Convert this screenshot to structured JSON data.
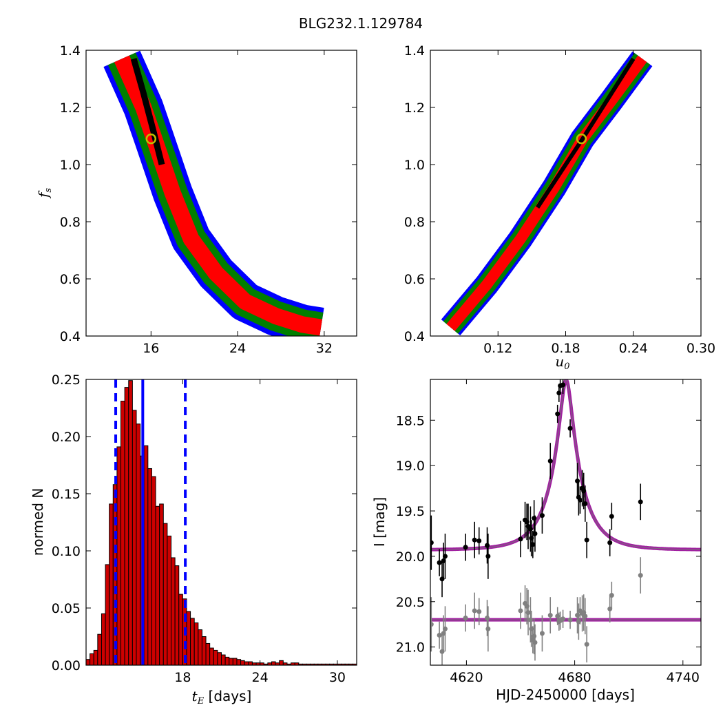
{
  "figure": {
    "title": "BLG232.1.129784"
  },
  "colors": {
    "sigma1": "#000000",
    "sigma2": "#ff0000",
    "sigma3": "#007f00",
    "sigma4": "#0000ff",
    "best_marker": "#bfbf00",
    "hist_fill": "#cc0000",
    "vline": "#0000ff",
    "model": "#a020a0",
    "model_core": "#777777",
    "data_main": "#000000",
    "data_resid": "#808080"
  },
  "chart_data": [
    {
      "id": "fs_vs_tE",
      "type": "heatmap",
      "title": "",
      "xlabel": "",
      "ylabel": "f_s",
      "xlim": [
        10,
        35
      ],
      "ylim": [
        0.4,
        1.4
      ],
      "xticks": [
        16,
        24,
        32
      ],
      "xtick_labels": [
        "16",
        "24",
        "32"
      ],
      "yticks": [
        0.4,
        0.6,
        0.8,
        1.0,
        1.2,
        1.4
      ],
      "ytick_labels": [
        "0.4",
        "0.6",
        "0.8",
        "1.0",
        "1.2",
        "1.4"
      ],
      "levels": [
        "1 sigma (black)",
        "2 sigma (red)",
        "3 sigma (green)",
        "4 sigma (blue)"
      ],
      "ridge": [
        [
          13.3,
          1.37
        ],
        [
          15.3,
          1.2
        ],
        [
          16.3,
          1.09
        ],
        [
          18.0,
          0.9
        ],
        [
          19.7,
          0.74
        ],
        [
          22.0,
          0.62
        ],
        [
          24.7,
          0.52
        ],
        [
          27.5,
          0.47
        ],
        [
          30.0,
          0.44
        ],
        [
          31.7,
          0.43
        ]
      ],
      "core_ridge": [
        [
          14.4,
          1.37
        ],
        [
          15.3,
          1.25
        ],
        [
          16.2,
          1.12
        ],
        [
          17.0,
          1.0
        ]
      ],
      "best_fit": {
        "x": 16.0,
        "y": 1.09
      }
    },
    {
      "id": "fs_vs_u0",
      "type": "heatmap",
      "title": "",
      "xlabel": "u_0",
      "ylabel": "",
      "xlim": [
        0.06,
        0.3
      ],
      "ylim": [
        0.4,
        1.4
      ],
      "xticks": [
        0.12,
        0.18,
        0.24,
        0.3
      ],
      "xtick_labels": [
        "0.12",
        "0.18",
        "0.24",
        "0.30"
      ],
      "yticks": [
        0.4,
        0.6,
        0.8,
        1.0,
        1.2,
        1.4
      ],
      "ytick_labels": [
        "0.4",
        "0.6",
        "0.8",
        "1.0",
        "1.2",
        "1.4"
      ],
      "ridge": [
        [
          0.078,
          0.43
        ],
        [
          0.11,
          0.58
        ],
        [
          0.14,
          0.74
        ],
        [
          0.17,
          0.92
        ],
        [
          0.195,
          1.09
        ],
        [
          0.22,
          1.22
        ],
        [
          0.248,
          1.37
        ]
      ],
      "core_ridge": [
        [
          0.155,
          0.85
        ],
        [
          0.195,
          1.09
        ],
        [
          0.24,
          1.37
        ]
      ],
      "best_fit": {
        "x": 0.194,
        "y": 1.09
      }
    },
    {
      "id": "tE_histogram",
      "type": "bar",
      "title": "",
      "xlabel": "t_E  [days]",
      "ylabel": "normed N",
      "xlim": [
        10.5,
        31.5
      ],
      "ylim": [
        0,
        0.25
      ],
      "xticks": [
        18,
        24,
        30
      ],
      "xtick_labels": [
        "18",
        "24",
        "30"
      ],
      "yticks": [
        0,
        0.05,
        0.1,
        0.15,
        0.2,
        0.25
      ],
      "ytick_labels": [
        "0.00",
        "0.05",
        "0.10",
        "0.15",
        "0.20",
        "0.25"
      ],
      "bin_start": 10.5,
      "bin_width": 0.3,
      "values": [
        0.005,
        0.01,
        0.013,
        0.027,
        0.045,
        0.088,
        0.141,
        0.158,
        0.191,
        0.231,
        0.243,
        0.249,
        0.223,
        0.211,
        0.183,
        0.192,
        0.172,
        0.165,
        0.139,
        0.141,
        0.124,
        0.113,
        0.094,
        0.087,
        0.062,
        0.058,
        0.047,
        0.041,
        0.037,
        0.031,
        0.025,
        0.019,
        0.015,
        0.013,
        0.011,
        0.009,
        0.007,
        0.006,
        0.006,
        0.005,
        0.004,
        0.003,
        0.003,
        0.002,
        0.002,
        0.002,
        0.001,
        0.002,
        0.003,
        0.002,
        0.004,
        0.002,
        0.001,
        0.002,
        0.002,
        0.001,
        0.001,
        0.001,
        0.001,
        0.001,
        0.001,
        0.001,
        0.001,
        0.001,
        0.001,
        0.001,
        0.001,
        0.001,
        0.001,
        0.001
      ],
      "median": 14.9,
      "bounds": [
        12.8,
        18.2
      ]
    },
    {
      "id": "light_curve",
      "type": "scatter",
      "title": "",
      "xlabel": "HJD-2450000 [days]",
      "ylabel": "I [mag]",
      "xlim": [
        4600,
        4750
      ],
      "ylim": [
        21.2,
        18.05
      ],
      "y_inverted": true,
      "xticks": [
        4620,
        4680,
        4740
      ],
      "xtick_labels": [
        "4620",
        "4680",
        "4740"
      ],
      "yticks": [
        18.5,
        19.0,
        19.5,
        20.0,
        20.5,
        21.0
      ],
      "ytick_labels": [
        "18.5",
        "19.0",
        "19.5",
        "20.0",
        "20.5",
        "21.0"
      ],
      "model": {
        "t0": 4675.3,
        "u0": 0.194,
        "tE": 16.0,
        "fs": 1.09,
        "baseline": 19.93
      },
      "residual_offset": 20.7,
      "series": [
        {
          "color": "#000000",
          "points": [
            [
              4600.5,
              19.85,
              0.3
            ],
            [
              4605.0,
              20.07,
              0.15
            ],
            [
              4606.5,
              20.25,
              0.2
            ],
            [
              4607.3,
              20.05,
              0.2
            ],
            [
              4608.2,
              20.0,
              0.25
            ],
            [
              4619.5,
              19.9,
              0.15
            ],
            [
              4624.5,
              19.82,
              0.2
            ],
            [
              4627.0,
              19.83,
              0.15
            ],
            [
              4631.5,
              19.88,
              0.2
            ],
            [
              4632.0,
              20.0,
              0.25
            ],
            [
              4650.0,
              19.81,
              0.2
            ],
            [
              4652.5,
              19.6,
              0.2
            ],
            [
              4653.5,
              19.62,
              0.2
            ],
            [
              4654.2,
              19.67,
              0.25
            ],
            [
              4655.5,
              19.7,
              0.25
            ],
            [
              4656.0,
              19.8,
              0.2
            ],
            [
              4656.8,
              19.87,
              0.15
            ],
            [
              4657.5,
              19.58,
              0.2
            ],
            [
              4658.0,
              19.75,
              0.2
            ],
            [
              4662.0,
              19.55,
              0.2
            ],
            [
              4666.5,
              18.95,
              0.2
            ],
            [
              4670.5,
              18.43,
              0.1
            ],
            [
              4671.3,
              18.2,
              0.1
            ],
            [
              4672.0,
              18.12,
              0.1
            ],
            [
              4673.5,
              18.11,
              0.1
            ],
            [
              4677.5,
              18.59,
              0.1
            ],
            [
              4681.5,
              19.17,
              0.2
            ],
            [
              4682.2,
              19.35,
              0.2
            ],
            [
              4683.0,
              19.38,
              0.15
            ],
            [
              4684.2,
              19.25,
              0.2
            ],
            [
              4685.0,
              19.28,
              0.2
            ],
            [
              4685.8,
              19.42,
              0.2
            ],
            [
              4686.7,
              19.82,
              0.2
            ],
            [
              4699.5,
              19.85,
              0.15
            ],
            [
              4700.5,
              19.56,
              0.15
            ],
            [
              4716.5,
              19.4,
              0.2
            ]
          ]
        },
        {
          "color": "#808080",
          "points": [
            [
              4600.5,
              20.75,
              0.3
            ],
            [
              4605.0,
              20.87,
              0.15
            ],
            [
              4606.5,
              21.05,
              0.2
            ],
            [
              4607.3,
              20.85,
              0.2
            ],
            [
              4608.2,
              20.8,
              0.25
            ],
            [
              4619.5,
              20.68,
              0.15
            ],
            [
              4624.5,
              20.6,
              0.2
            ],
            [
              4627.0,
              20.61,
              0.15
            ],
            [
              4631.5,
              20.68,
              0.2
            ],
            [
              4632.0,
              20.8,
              0.25
            ],
            [
              4650.0,
              20.6,
              0.2
            ],
            [
              4652.5,
              20.52,
              0.2
            ],
            [
              4653.5,
              20.55,
              0.2
            ],
            [
              4654.2,
              20.62,
              0.25
            ],
            [
              4655.5,
              20.7,
              0.25
            ],
            [
              4656.0,
              20.8,
              0.2
            ],
            [
              4656.8,
              20.92,
              0.15
            ],
            [
              4657.5,
              20.88,
              0.2
            ],
            [
              4658.0,
              20.95,
              0.2
            ],
            [
              4662.0,
              20.85,
              0.2
            ],
            [
              4666.5,
              20.65,
              0.2
            ],
            [
              4670.5,
              20.66,
              0.1
            ],
            [
              4671.3,
              20.72,
              0.1
            ],
            [
              4672.0,
              20.71,
              0.1
            ],
            [
              4673.5,
              20.69,
              0.1
            ],
            [
              4677.5,
              20.7,
              0.1
            ],
            [
              4681.5,
              20.65,
              0.2
            ],
            [
              4682.2,
              20.72,
              0.2
            ],
            [
              4683.0,
              20.6,
              0.15
            ],
            [
              4684.2,
              20.63,
              0.2
            ],
            [
              4685.0,
              20.62,
              0.2
            ],
            [
              4685.8,
              20.66,
              0.2
            ],
            [
              4686.7,
              20.97,
              0.2
            ],
            [
              4699.5,
              20.58,
              0.15
            ],
            [
              4700.5,
              20.43,
              0.15
            ],
            [
              4716.5,
              20.21,
              0.2
            ]
          ]
        }
      ]
    }
  ]
}
